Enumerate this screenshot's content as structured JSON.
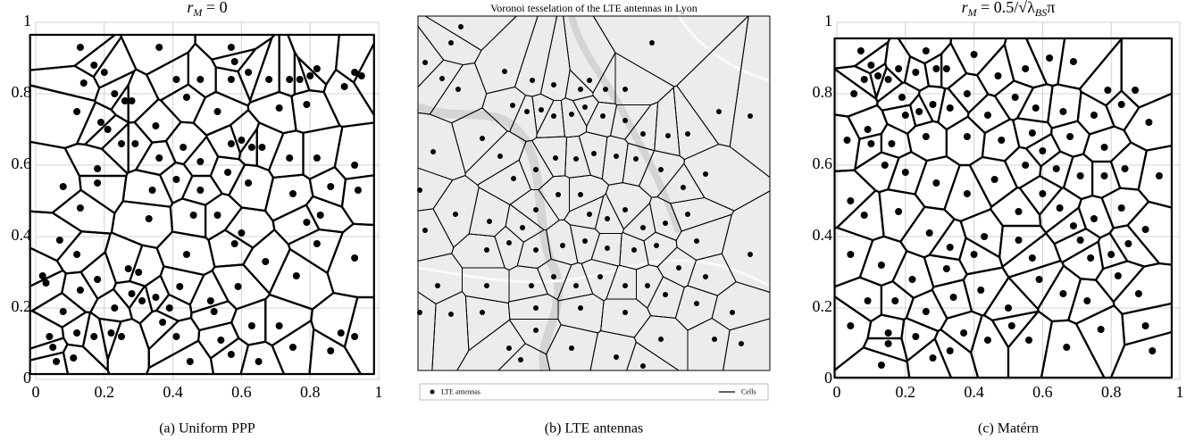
{
  "chart_data": [
    {
      "type": "scatter",
      "title": "rM = 0",
      "caption": "(a) Uniform PPP",
      "color": "#000000",
      "grid": true,
      "xlim": [
        0,
        1
      ],
      "ylim": [
        0,
        1
      ],
      "xticks": [
        0,
        0.2,
        0.4,
        0.6,
        0.8,
        1
      ],
      "yticks": [
        0,
        0.2,
        0.4,
        0.6,
        0.8,
        1
      ],
      "x": [
        0.13,
        0.17,
        0.2,
        0.14,
        0.12,
        0.23,
        0.26,
        0.28,
        0.36,
        0.41,
        0.44,
        0.48,
        0.53,
        0.57,
        0.58,
        0.57,
        0.62,
        0.68,
        0.71,
        0.74,
        0.77,
        0.8,
        0.82,
        0.79,
        0.9,
        0.93,
        0.95,
        0.19,
        0.21,
        0.25,
        0.29,
        0.35,
        0.36,
        0.43,
        0.48,
        0.57,
        0.6,
        0.63,
        0.66,
        0.74,
        0.82,
        0.93,
        0.18,
        0.18,
        0.08,
        0.34,
        0.41,
        0.48,
        0.56,
        0.62,
        0.75,
        0.86,
        0.94,
        0.13,
        0.33,
        0.46,
        0.53,
        0.6,
        0.58,
        0.83,
        0.79,
        0.07,
        0.12,
        0.02,
        0.03,
        0.27,
        0.3,
        0.44,
        0.67,
        0.82,
        0.93,
        0.18,
        0.28,
        0.35,
        0.42,
        0.51,
        0.52,
        0.59,
        0.76,
        0.13,
        0.23,
        0.31,
        0.39,
        0.08,
        0.17,
        0.12,
        0.04,
        0.05,
        0.06,
        0.11,
        0.22,
        0.25,
        0.41,
        0.45,
        0.57,
        0.63,
        0.71,
        0.75,
        0.86,
        0.89,
        0.93,
        0.65,
        0.37,
        0.54
      ],
      "y": [
        0.93,
        0.88,
        0.86,
        0.83,
        0.75,
        0.8,
        0.78,
        0.78,
        0.93,
        0.84,
        0.79,
        0.84,
        0.75,
        0.93,
        0.89,
        0.84,
        0.86,
        0.84,
        0.76,
        0.84,
        0.84,
        0.85,
        0.87,
        0.77,
        0.82,
        0.86,
        0.85,
        0.72,
        0.7,
        0.66,
        0.66,
        0.71,
        0.62,
        0.65,
        0.61,
        0.66,
        0.67,
        0.65,
        0.65,
        0.62,
        0.62,
        0.6,
        0.59,
        0.55,
        0.54,
        0.53,
        0.56,
        0.53,
        0.58,
        0.55,
        0.52,
        0.54,
        0.53,
        0.48,
        0.45,
        0.46,
        0.46,
        0.41,
        0.38,
        0.46,
        0.44,
        0.39,
        0.35,
        0.29,
        0.27,
        0.31,
        0.3,
        0.35,
        0.33,
        0.38,
        0.34,
        0.28,
        0.24,
        0.23,
        0.26,
        0.22,
        0.19,
        0.26,
        0.29,
        0.25,
        0.2,
        0.22,
        0.2,
        0.19,
        0.12,
        0.13,
        0.12,
        0.09,
        0.05,
        0.06,
        0.13,
        0.12,
        0.12,
        0.05,
        0.07,
        0.15,
        0.15,
        0.09,
        0.08,
        0.13,
        0.12,
        0.05,
        0.16,
        0.11
      ]
    },
    {
      "type": "map",
      "title": "Voronoi tesselation of the LTE antennas in Lyon",
      "caption": "(b) LTE antennas",
      "xlim": [
        0,
        394
      ],
      "ylim": [
        0,
        397
      ],
      "series": [
        {
          "name": "LTE antennas",
          "color": "#000000",
          "x": [
            48,
            37,
            8,
            27,
            45,
            97,
            128,
            152,
            182,
            192,
            210,
            232,
            262,
            106,
            122,
            138,
            152,
            172,
            187,
            207,
            232,
            252,
            280,
            302,
            337,
            372,
            17,
            72,
            92,
            107,
            132,
            154,
            177,
            197,
            222,
            244,
            272,
            297,
            322,
            182,
            157,
            132,
            117,
            80,
            42,
            8,
            2,
            192,
            212,
            232,
            252,
            277,
            302,
            312,
            132,
            162,
            187,
            212,
            242,
            267,
            292,
            322,
            372,
            102,
            77,
            127,
            152,
            177,
            204,
            232,
            257,
            132,
            182,
            232,
            277,
            312,
            352,
            72,
            37,
            102,
            132,
            172,
            222,
            272,
            332,
            362,
            115,
            252,
            77,
            22,
            2
          ],
          "y": [
            385,
            367,
            345,
            327,
            315,
            335,
            325,
            320,
            315,
            325,
            315,
            315,
            367,
            297,
            290,
            292,
            285,
            287,
            295,
            285,
            280,
            265,
            263,
            265,
            290,
            285,
            245,
            260,
            240,
            215,
            225,
            238,
            237,
            243,
            240,
            237,
            225,
            205,
            220,
            197,
            197,
            180,
            160,
            167,
            175,
            157,
            202,
            175,
            170,
            180,
            160,
            165,
            175,
            145,
            135,
            140,
            145,
            137,
            135,
            140,
            115,
            105,
            130,
            143,
            135,
            95,
            105,
            95,
            105,
            95,
            95,
            70,
            70,
            65,
            85,
            75,
            65,
            65,
            63,
            25,
            45,
            25,
            15,
            35,
            35,
            30,
            12,
            5,
            95,
            95,
            65
          ]
        },
        {
          "name": "Cells",
          "color": "#000000"
        }
      ]
    },
    {
      "type": "scatter",
      "title": "rM = 0.5/√λBSπ",
      "caption": "(c) Matérn",
      "color": "#000000",
      "grid": true,
      "xlim": [
        0,
        1
      ],
      "ylim": [
        0,
        1
      ],
      "xticks": [
        0,
        0.2,
        0.4,
        0.6,
        0.8,
        1
      ],
      "yticks": [
        0,
        0.2,
        0.4,
        0.6,
        0.8,
        1
      ],
      "x": [
        0.07,
        0.1,
        0.12,
        0.15,
        0.08,
        0.05,
        0.18,
        0.23,
        0.26,
        0.29,
        0.32,
        0.4,
        0.47,
        0.55,
        0.62,
        0.69,
        0.79,
        0.87,
        0.19,
        0.24,
        0.2,
        0.28,
        0.33,
        0.38,
        0.44,
        0.52,
        0.58,
        0.66,
        0.75,
        0.83,
        0.91,
        0.09,
        0.1,
        0.03,
        0.16,
        0.26,
        0.38,
        0.48,
        0.57,
        0.6,
        0.68,
        0.78,
        0.14,
        0.2,
        0.29,
        0.38,
        0.46,
        0.55,
        0.64,
        0.71,
        0.78,
        0.84,
        0.94,
        0.04,
        0.08,
        0.18,
        0.27,
        0.33,
        0.43,
        0.53,
        0.6,
        0.65,
        0.75,
        0.83,
        0.9,
        0.04,
        0.13,
        0.22,
        0.32,
        0.4,
        0.53,
        0.57,
        0.69,
        0.71,
        0.74,
        0.8,
        0.85,
        0.09,
        0.17,
        0.26,
        0.34,
        0.42,
        0.5,
        0.59,
        0.66,
        0.73,
        0.82,
        0.88,
        0.04,
        0.15,
        0.15,
        0.23,
        0.33,
        0.37,
        0.44,
        0.51,
        0.56,
        0.67,
        0.77,
        0.9,
        0.92,
        0.13,
        0.28
      ],
      "y": [
        0.92,
        0.88,
        0.85,
        0.84,
        0.84,
        0.8,
        0.87,
        0.86,
        0.92,
        0.87,
        0.87,
        0.91,
        0.85,
        0.87,
        0.9,
        0.89,
        0.81,
        0.81,
        0.79,
        0.75,
        0.74,
        0.77,
        0.76,
        0.8,
        0.74,
        0.79,
        0.76,
        0.75,
        0.74,
        0.77,
        0.72,
        0.7,
        0.66,
        0.67,
        0.66,
        0.68,
        0.68,
        0.67,
        0.69,
        0.64,
        0.68,
        0.65,
        0.6,
        0.58,
        0.55,
        0.52,
        0.56,
        0.6,
        0.59,
        0.57,
        0.57,
        0.59,
        0.57,
        0.5,
        0.46,
        0.47,
        0.41,
        0.37,
        0.4,
        0.47,
        0.52,
        0.48,
        0.45,
        0.48,
        0.42,
        0.35,
        0.32,
        0.28,
        0.31,
        0.35,
        0.39,
        0.34,
        0.43,
        0.39,
        0.34,
        0.35,
        0.38,
        0.22,
        0.22,
        0.19,
        0.23,
        0.25,
        0.2,
        0.28,
        0.24,
        0.22,
        0.29,
        0.24,
        0.15,
        0.13,
        0.1,
        0.12,
        0.08,
        0.13,
        0.11,
        0.15,
        0.11,
        0.09,
        0.14,
        0.15,
        0.08,
        0.04,
        0.06
      ]
    }
  ]
}
